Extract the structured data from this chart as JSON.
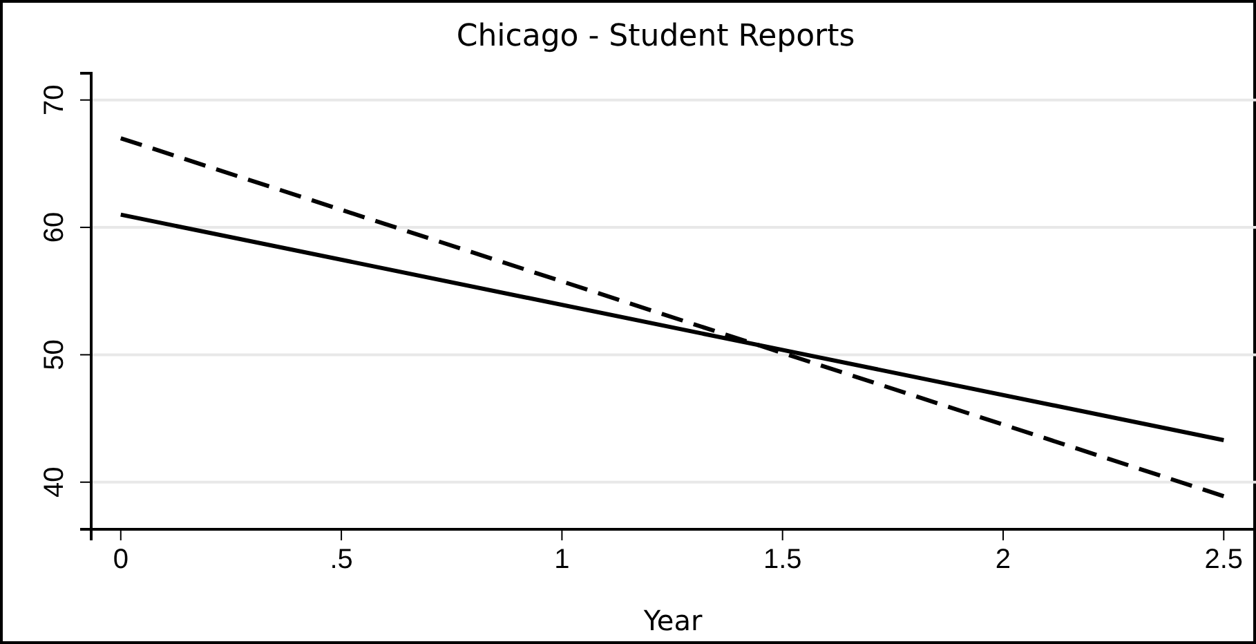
{
  "chart_data": {
    "type": "line",
    "title": "Chicago - Student Reports",
    "xlabel": "Year",
    "x": [
      0,
      2.5
    ],
    "series": [
      {
        "color": "#000000",
        "values": [
          61,
          43.3
        ],
        "line_style": "solid"
      },
      {
        "color": "#000000",
        "values": [
          67,
          38.9
        ],
        "line_style": "dashed"
      }
    ],
    "xlim": [
      -0.067,
      2.57
    ],
    "ylim": [
      36.3,
      72.1
    ],
    "xticks": [
      0,
      {
        "value": 0.5,
        "label": ".5"
      },
      1,
      1.5,
      2,
      2.5
    ],
    "yticks": [
      40,
      50,
      60,
      70
    ],
    "grid": "y",
    "marker": "none"
  }
}
